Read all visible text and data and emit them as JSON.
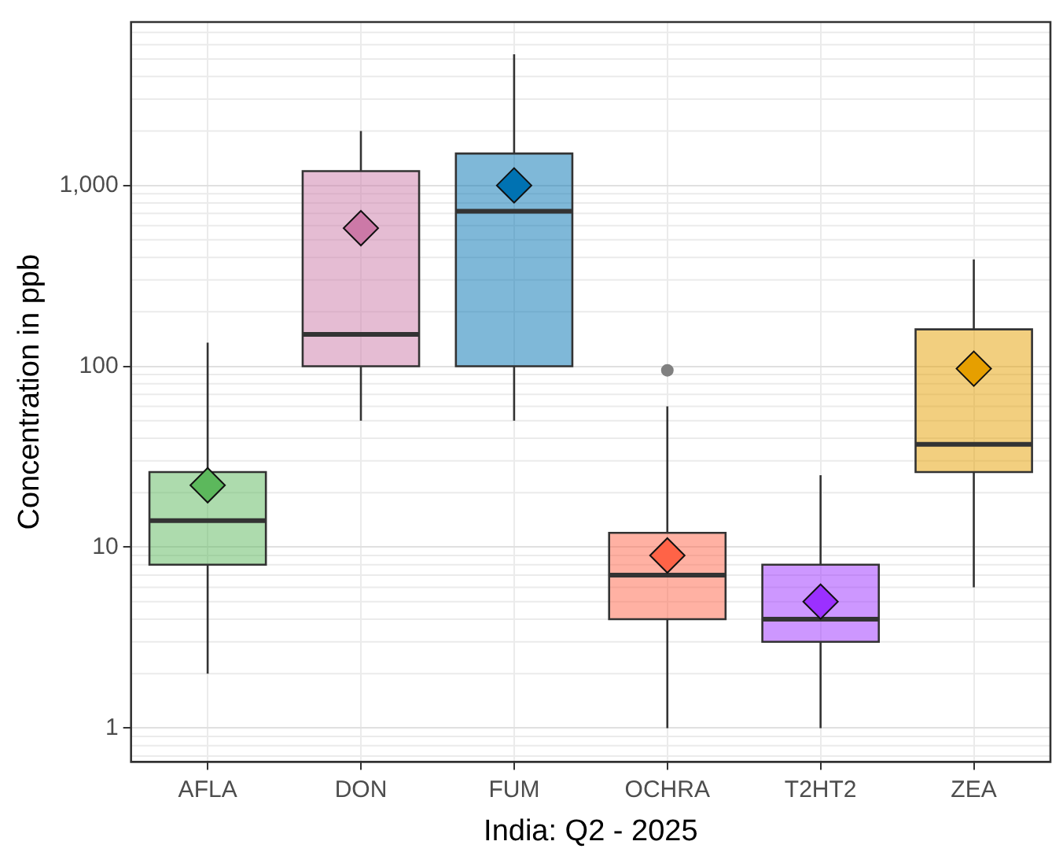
{
  "chart_data": {
    "type": "box",
    "xlabel": "India: Q2 - 2025",
    "ylabel": "Concentration in ppb",
    "categories": [
      "AFLA",
      "DON",
      "FUM",
      "OCHRA",
      "T2HT2",
      "ZEA"
    ],
    "colors": [
      "#5cb85c",
      "#cc79a7",
      "#0072b2",
      "#ff6347",
      "#9b30ff",
      "#e69f00"
    ],
    "boxes": [
      {
        "low": 2,
        "q1": 8,
        "median": 14,
        "q3": 26,
        "high": 135,
        "mean": 22
      },
      {
        "low": 50,
        "q1": 100,
        "median": 150,
        "q3": 1200,
        "high": 2000,
        "mean": 580
      },
      {
        "low": 50,
        "q1": 100,
        "median": 720,
        "q3": 1500,
        "high": 5300,
        "mean": 1000
      },
      {
        "low": 1,
        "q1": 4,
        "median": 7,
        "q3": 12,
        "high": 60,
        "mean": 9,
        "outliers": [
          95
        ]
      },
      {
        "low": 1,
        "q1": 3,
        "median": 4,
        "q3": 8,
        "high": 25,
        "mean": 5
      },
      {
        "low": 6,
        "q1": 26,
        "median": 37,
        "q3": 160,
        "high": 390,
        "mean": 97
      }
    ],
    "log": true,
    "ylim": [
      0.65,
      8000
    ],
    "yticks": [
      1,
      10,
      100,
      {
        "value": 1000,
        "label": "1,000"
      }
    ],
    "grid": true
  }
}
